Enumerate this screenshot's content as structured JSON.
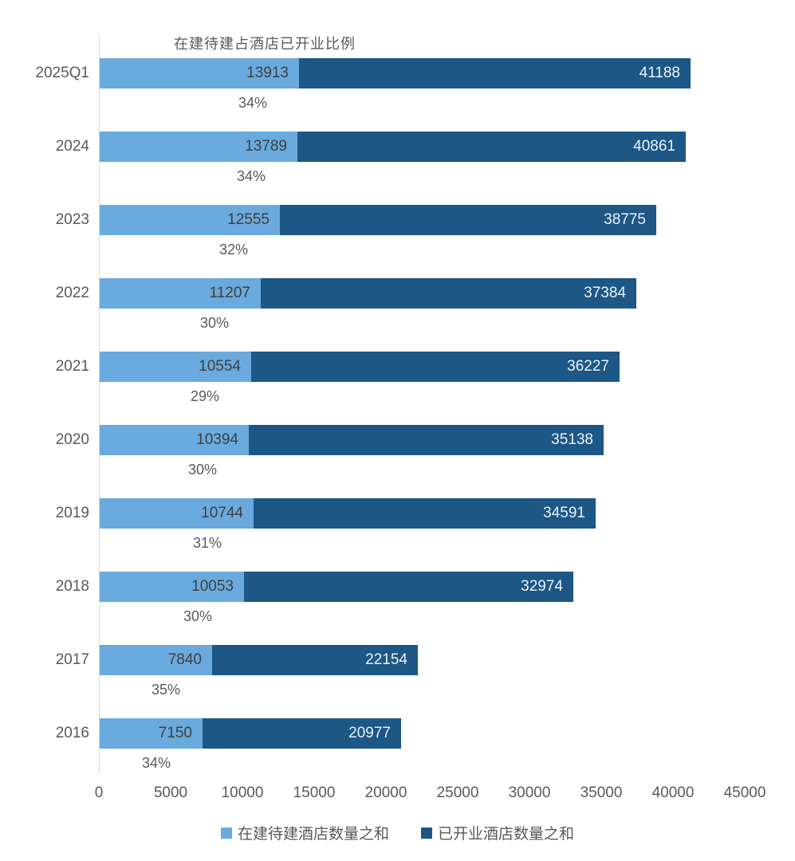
{
  "chart_data": {
    "type": "bar",
    "orientation": "horizontal",
    "overlap": "light series drawn over total (dark) bar; bar length equals opened-hotels value",
    "title": "在建待建占酒店已开业比例",
    "categories": [
      "2025Q1",
      "2024",
      "2023",
      "2022",
      "2021",
      "2020",
      "2019",
      "2018",
      "2017",
      "2016"
    ],
    "series": [
      {
        "name": "在建待建酒店数量之和",
        "color": "#6AAADE",
        "values": [
          13913,
          13789,
          12555,
          11207,
          10554,
          10394,
          10744,
          10053,
          7840,
          7150
        ]
      },
      {
        "name": "已开业酒店数量之和",
        "color": "#1C5786",
        "values": [
          41188,
          40861,
          38775,
          37384,
          36227,
          35138,
          34591,
          32974,
          22154,
          20977
        ]
      }
    ],
    "ratio_labels": [
      "34%",
      "34%",
      "32%",
      "30%",
      "29%",
      "30%",
      "31%",
      "30%",
      "35%",
      "34%"
    ],
    "x_ticks": [
      0,
      5000,
      10000,
      15000,
      20000,
      25000,
      30000,
      35000,
      40000,
      45000
    ],
    "xlim": [
      0,
      45000
    ],
    "xlabel": "",
    "ylabel": "",
    "grid": false,
    "legend_position": "bottom",
    "colors": {
      "pipeline_bar": "#6AAADE",
      "opened_bar": "#1C5786",
      "axis_line": "#D9D9D9",
      "text_gray": "#595959",
      "light_bar_value_text": "#3F3F3F",
      "dark_bar_value_text": "#EDF2F7"
    }
  }
}
